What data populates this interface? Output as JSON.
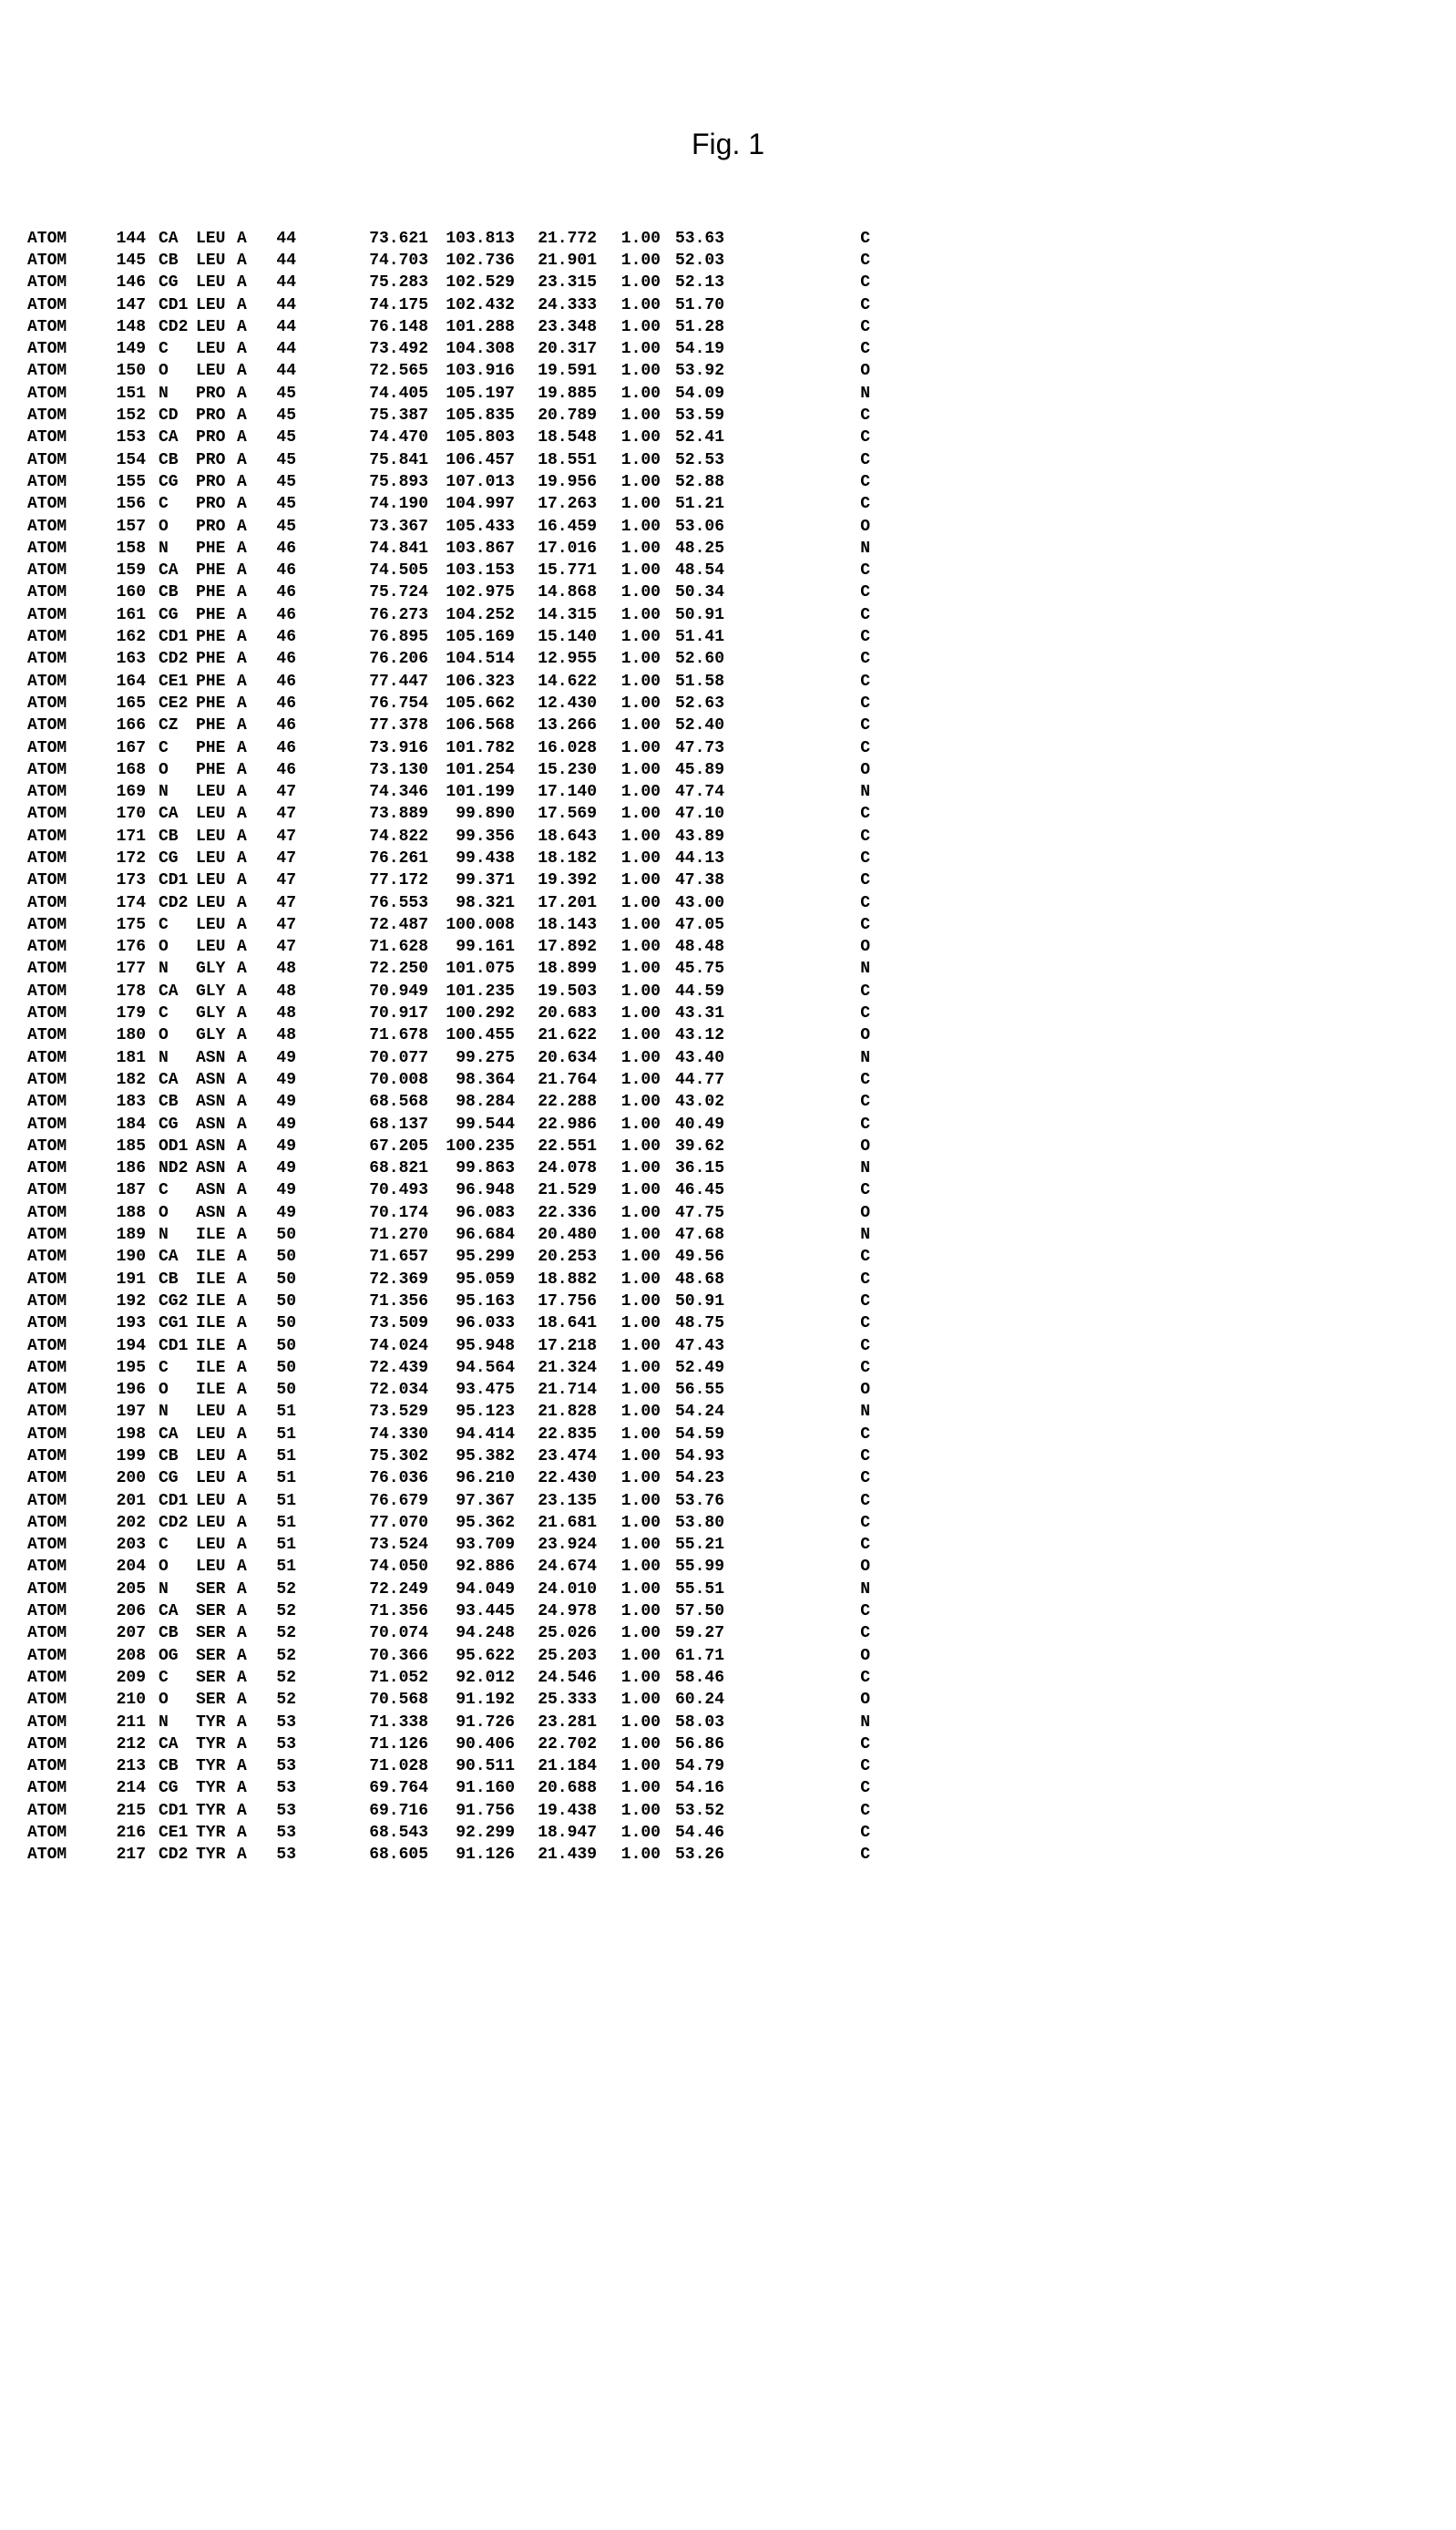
{
  "title": "Fig. 1",
  "styling": {
    "font_family": "Courier New",
    "font_size_pt": 14,
    "font_weight": "bold",
    "title_font_family": "Arial",
    "title_font_size_pt": 24,
    "text_color": "#000000",
    "background_color": "#ffffff",
    "line_height": 1.35
  },
  "columns": [
    "record",
    "serial",
    "atom",
    "residue",
    "chain",
    "res_seq",
    "x",
    "y",
    "z",
    "occupancy",
    "b_factor",
    "element"
  ],
  "rows": [
    [
      "ATOM",
      "144",
      "CA",
      "LEU",
      "A",
      "44",
      "73.621",
      "103.813",
      "21.772",
      "1.00",
      "53.63",
      "C"
    ],
    [
      "ATOM",
      "145",
      "CB",
      "LEU",
      "A",
      "44",
      "74.703",
      "102.736",
      "21.901",
      "1.00",
      "52.03",
      "C"
    ],
    [
      "ATOM",
      "146",
      "CG",
      "LEU",
      "A",
      "44",
      "75.283",
      "102.529",
      "23.315",
      "1.00",
      "52.13",
      "C"
    ],
    [
      "ATOM",
      "147",
      "CD1",
      "LEU",
      "A",
      "44",
      "74.175",
      "102.432",
      "24.333",
      "1.00",
      "51.70",
      "C"
    ],
    [
      "ATOM",
      "148",
      "CD2",
      "LEU",
      "A",
      "44",
      "76.148",
      "101.288",
      "23.348",
      "1.00",
      "51.28",
      "C"
    ],
    [
      "ATOM",
      "149",
      "C",
      "LEU",
      "A",
      "44",
      "73.492",
      "104.308",
      "20.317",
      "1.00",
      "54.19",
      "C"
    ],
    [
      "ATOM",
      "150",
      "O",
      "LEU",
      "A",
      "44",
      "72.565",
      "103.916",
      "19.591",
      "1.00",
      "53.92",
      "O"
    ],
    [
      "ATOM",
      "151",
      "N",
      "PRO",
      "A",
      "45",
      "74.405",
      "105.197",
      "19.885",
      "1.00",
      "54.09",
      "N"
    ],
    [
      "ATOM",
      "152",
      "CD",
      "PRO",
      "A",
      "45",
      "75.387",
      "105.835",
      "20.789",
      "1.00",
      "53.59",
      "C"
    ],
    [
      "ATOM",
      "153",
      "CA",
      "PRO",
      "A",
      "45",
      "74.470",
      "105.803",
      "18.548",
      "1.00",
      "52.41",
      "C"
    ],
    [
      "ATOM",
      "154",
      "CB",
      "PRO",
      "A",
      "45",
      "75.841",
      "106.457",
      "18.551",
      "1.00",
      "52.53",
      "C"
    ],
    [
      "ATOM",
      "155",
      "CG",
      "PRO",
      "A",
      "45",
      "75.893",
      "107.013",
      "19.956",
      "1.00",
      "52.88",
      "C"
    ],
    [
      "ATOM",
      "156",
      "C",
      "PRO",
      "A",
      "45",
      "74.190",
      "104.997",
      "17.263",
      "1.00",
      "51.21",
      "C"
    ],
    [
      "ATOM",
      "157",
      "O",
      "PRO",
      "A",
      "45",
      "73.367",
      "105.433",
      "16.459",
      "1.00",
      "53.06",
      "O"
    ],
    [
      "ATOM",
      "158",
      "N",
      "PHE",
      "A",
      "46",
      "74.841",
      "103.867",
      "17.016",
      "1.00",
      "48.25",
      "N"
    ],
    [
      "ATOM",
      "159",
      "CA",
      "PHE",
      "A",
      "46",
      "74.505",
      "103.153",
      "15.771",
      "1.00",
      "48.54",
      "C"
    ],
    [
      "ATOM",
      "160",
      "CB",
      "PHE",
      "A",
      "46",
      "75.724",
      "102.975",
      "14.868",
      "1.00",
      "50.34",
      "C"
    ],
    [
      "ATOM",
      "161",
      "CG",
      "PHE",
      "A",
      "46",
      "76.273",
      "104.252",
      "14.315",
      "1.00",
      "50.91",
      "C"
    ],
    [
      "ATOM",
      "162",
      "CD1",
      "PHE",
      "A",
      "46",
      "76.895",
      "105.169",
      "15.140",
      "1.00",
      "51.41",
      "C"
    ],
    [
      "ATOM",
      "163",
      "CD2",
      "PHE",
      "A",
      "46",
      "76.206",
      "104.514",
      "12.955",
      "1.00",
      "52.60",
      "C"
    ],
    [
      "ATOM",
      "164",
      "CE1",
      "PHE",
      "A",
      "46",
      "77.447",
      "106.323",
      "14.622",
      "1.00",
      "51.58",
      "C"
    ],
    [
      "ATOM",
      "165",
      "CE2",
      "PHE",
      "A",
      "46",
      "76.754",
      "105.662",
      "12.430",
      "1.00",
      "52.63",
      "C"
    ],
    [
      "ATOM",
      "166",
      "CZ",
      "PHE",
      "A",
      "46",
      "77.378",
      "106.568",
      "13.266",
      "1.00",
      "52.40",
      "C"
    ],
    [
      "ATOM",
      "167",
      "C",
      "PHE",
      "A",
      "46",
      "73.916",
      "101.782",
      "16.028",
      "1.00",
      "47.73",
      "C"
    ],
    [
      "ATOM",
      "168",
      "O",
      "PHE",
      "A",
      "46",
      "73.130",
      "101.254",
      "15.230",
      "1.00",
      "45.89",
      "O"
    ],
    [
      "ATOM",
      "169",
      "N",
      "LEU",
      "A",
      "47",
      "74.346",
      "101.199",
      "17.140",
      "1.00",
      "47.74",
      "N"
    ],
    [
      "ATOM",
      "170",
      "CA",
      "LEU",
      "A",
      "47",
      "73.889",
      "99.890",
      "17.569",
      "1.00",
      "47.10",
      "C"
    ],
    [
      "ATOM",
      "171",
      "CB",
      "LEU",
      "A",
      "47",
      "74.822",
      "99.356",
      "18.643",
      "1.00",
      "43.89",
      "C"
    ],
    [
      "ATOM",
      "172",
      "CG",
      "LEU",
      "A",
      "47",
      "76.261",
      "99.438",
      "18.182",
      "1.00",
      "44.13",
      "C"
    ],
    [
      "ATOM",
      "173",
      "CD1",
      "LEU",
      "A",
      "47",
      "77.172",
      "99.371",
      "19.392",
      "1.00",
      "47.38",
      "C"
    ],
    [
      "ATOM",
      "174",
      "CD2",
      "LEU",
      "A",
      "47",
      "76.553",
      "98.321",
      "17.201",
      "1.00",
      "43.00",
      "C"
    ],
    [
      "ATOM",
      "175",
      "C",
      "LEU",
      "A",
      "47",
      "72.487",
      "100.008",
      "18.143",
      "1.00",
      "47.05",
      "C"
    ],
    [
      "ATOM",
      "176",
      "O",
      "LEU",
      "A",
      "47",
      "71.628",
      "99.161",
      "17.892",
      "1.00",
      "48.48",
      "O"
    ],
    [
      "ATOM",
      "177",
      "N",
      "GLY",
      "A",
      "48",
      "72.250",
      "101.075",
      "18.899",
      "1.00",
      "45.75",
      "N"
    ],
    [
      "ATOM",
      "178",
      "CA",
      "GLY",
      "A",
      "48",
      "70.949",
      "101.235",
      "19.503",
      "1.00",
      "44.59",
      "C"
    ],
    [
      "ATOM",
      "179",
      "C",
      "GLY",
      "A",
      "48",
      "70.917",
      "100.292",
      "20.683",
      "1.00",
      "43.31",
      "C"
    ],
    [
      "ATOM",
      "180",
      "O",
      "GLY",
      "A",
      "48",
      "71.678",
      "100.455",
      "21.622",
      "1.00",
      "43.12",
      "O"
    ],
    [
      "ATOM",
      "181",
      "N",
      "ASN",
      "A",
      "49",
      "70.077",
      "99.275",
      "20.634",
      "1.00",
      "43.40",
      "N"
    ],
    [
      "ATOM",
      "182",
      "CA",
      "ASN",
      "A",
      "49",
      "70.008",
      "98.364",
      "21.764",
      "1.00",
      "44.77",
      "C"
    ],
    [
      "ATOM",
      "183",
      "CB",
      "ASN",
      "A",
      "49",
      "68.568",
      "98.284",
      "22.288",
      "1.00",
      "43.02",
      "C"
    ],
    [
      "ATOM",
      "184",
      "CG",
      "ASN",
      "A",
      "49",
      "68.137",
      "99.544",
      "22.986",
      "1.00",
      "40.49",
      "C"
    ],
    [
      "ATOM",
      "185",
      "OD1",
      "ASN",
      "A",
      "49",
      "67.205",
      "100.235",
      "22.551",
      "1.00",
      "39.62",
      "O"
    ],
    [
      "ATOM",
      "186",
      "ND2",
      "ASN",
      "A",
      "49",
      "68.821",
      "99.863",
      "24.078",
      "1.00",
      "36.15",
      "N"
    ],
    [
      "ATOM",
      "187",
      "C",
      "ASN",
      "A",
      "49",
      "70.493",
      "96.948",
      "21.529",
      "1.00",
      "46.45",
      "C"
    ],
    [
      "ATOM",
      "188",
      "O",
      "ASN",
      "A",
      "49",
      "70.174",
      "96.083",
      "22.336",
      "1.00",
      "47.75",
      "O"
    ],
    [
      "ATOM",
      "189",
      "N",
      "ILE",
      "A",
      "50",
      "71.270",
      "96.684",
      "20.480",
      "1.00",
      "47.68",
      "N"
    ],
    [
      "ATOM",
      "190",
      "CA",
      "ILE",
      "A",
      "50",
      "71.657",
      "95.299",
      "20.253",
      "1.00",
      "49.56",
      "C"
    ],
    [
      "ATOM",
      "191",
      "CB",
      "ILE",
      "A",
      "50",
      "72.369",
      "95.059",
      "18.882",
      "1.00",
      "48.68",
      "C"
    ],
    [
      "ATOM",
      "192",
      "CG2",
      "ILE",
      "A",
      "50",
      "71.356",
      "95.163",
      "17.756",
      "1.00",
      "50.91",
      "C"
    ],
    [
      "ATOM",
      "193",
      "CG1",
      "ILE",
      "A",
      "50",
      "73.509",
      "96.033",
      "18.641",
      "1.00",
      "48.75",
      "C"
    ],
    [
      "ATOM",
      "194",
      "CD1",
      "ILE",
      "A",
      "50",
      "74.024",
      "95.948",
      "17.218",
      "1.00",
      "47.43",
      "C"
    ],
    [
      "ATOM",
      "195",
      "C",
      "ILE",
      "A",
      "50",
      "72.439",
      "94.564",
      "21.324",
      "1.00",
      "52.49",
      "C"
    ],
    [
      "ATOM",
      "196",
      "O",
      "ILE",
      "A",
      "50",
      "72.034",
      "93.475",
      "21.714",
      "1.00",
      "56.55",
      "O"
    ],
    [
      "ATOM",
      "197",
      "N",
      "LEU",
      "A",
      "51",
      "73.529",
      "95.123",
      "21.828",
      "1.00",
      "54.24",
      "N"
    ],
    [
      "ATOM",
      "198",
      "CA",
      "LEU",
      "A",
      "51",
      "74.330",
      "94.414",
      "22.835",
      "1.00",
      "54.59",
      "C"
    ],
    [
      "ATOM",
      "199",
      "CB",
      "LEU",
      "A",
      "51",
      "75.302",
      "95.382",
      "23.474",
      "1.00",
      "54.93",
      "C"
    ],
    [
      "ATOM",
      "200",
      "CG",
      "LEU",
      "A",
      "51",
      "76.036",
      "96.210",
      "22.430",
      "1.00",
      "54.23",
      "C"
    ],
    [
      "ATOM",
      "201",
      "CD1",
      "LEU",
      "A",
      "51",
      "76.679",
      "97.367",
      "23.135",
      "1.00",
      "53.76",
      "C"
    ],
    [
      "ATOM",
      "202",
      "CD2",
      "LEU",
      "A",
      "51",
      "77.070",
      "95.362",
      "21.681",
      "1.00",
      "53.80",
      "C"
    ],
    [
      "ATOM",
      "203",
      "C",
      "LEU",
      "A",
      "51",
      "73.524",
      "93.709",
      "23.924",
      "1.00",
      "55.21",
      "C"
    ],
    [
      "ATOM",
      "204",
      "O",
      "LEU",
      "A",
      "51",
      "74.050",
      "92.886",
      "24.674",
      "1.00",
      "55.99",
      "O"
    ],
    [
      "ATOM",
      "205",
      "N",
      "SER",
      "A",
      "52",
      "72.249",
      "94.049",
      "24.010",
      "1.00",
      "55.51",
      "N"
    ],
    [
      "ATOM",
      "206",
      "CA",
      "SER",
      "A",
      "52",
      "71.356",
      "93.445",
      "24.978",
      "1.00",
      "57.50",
      "C"
    ],
    [
      "ATOM",
      "207",
      "CB",
      "SER",
      "A",
      "52",
      "70.074",
      "94.248",
      "25.026",
      "1.00",
      "59.27",
      "C"
    ],
    [
      "ATOM",
      "208",
      "OG",
      "SER",
      "A",
      "52",
      "70.366",
      "95.622",
      "25.203",
      "1.00",
      "61.71",
      "O"
    ],
    [
      "ATOM",
      "209",
      "C",
      "SER",
      "A",
      "52",
      "71.052",
      "92.012",
      "24.546",
      "1.00",
      "58.46",
      "C"
    ],
    [
      "ATOM",
      "210",
      "O",
      "SER",
      "A",
      "52",
      "70.568",
      "91.192",
      "25.333",
      "1.00",
      "60.24",
      "O"
    ],
    [
      "ATOM",
      "211",
      "N",
      "TYR",
      "A",
      "53",
      "71.338",
      "91.726",
      "23.281",
      "1.00",
      "58.03",
      "N"
    ],
    [
      "ATOM",
      "212",
      "CA",
      "TYR",
      "A",
      "53",
      "71.126",
      "90.406",
      "22.702",
      "1.00",
      "56.86",
      "C"
    ],
    [
      "ATOM",
      "213",
      "CB",
      "TYR",
      "A",
      "53",
      "71.028",
      "90.511",
      "21.184",
      "1.00",
      "54.79",
      "C"
    ],
    [
      "ATOM",
      "214",
      "CG",
      "TYR",
      "A",
      "53",
      "69.764",
      "91.160",
      "20.688",
      "1.00",
      "54.16",
      "C"
    ],
    [
      "ATOM",
      "215",
      "CD1",
      "TYR",
      "A",
      "53",
      "69.716",
      "91.756",
      "19.438",
      "1.00",
      "53.52",
      "C"
    ],
    [
      "ATOM",
      "216",
      "CE1",
      "TYR",
      "A",
      "53",
      "68.543",
      "92.299",
      "18.947",
      "1.00",
      "54.46",
      "C"
    ],
    [
      "ATOM",
      "217",
      "CD2",
      "TYR",
      "A",
      "53",
      "68.605",
      "91.126",
      "21.439",
      "1.00",
      "53.26",
      "C"
    ]
  ]
}
